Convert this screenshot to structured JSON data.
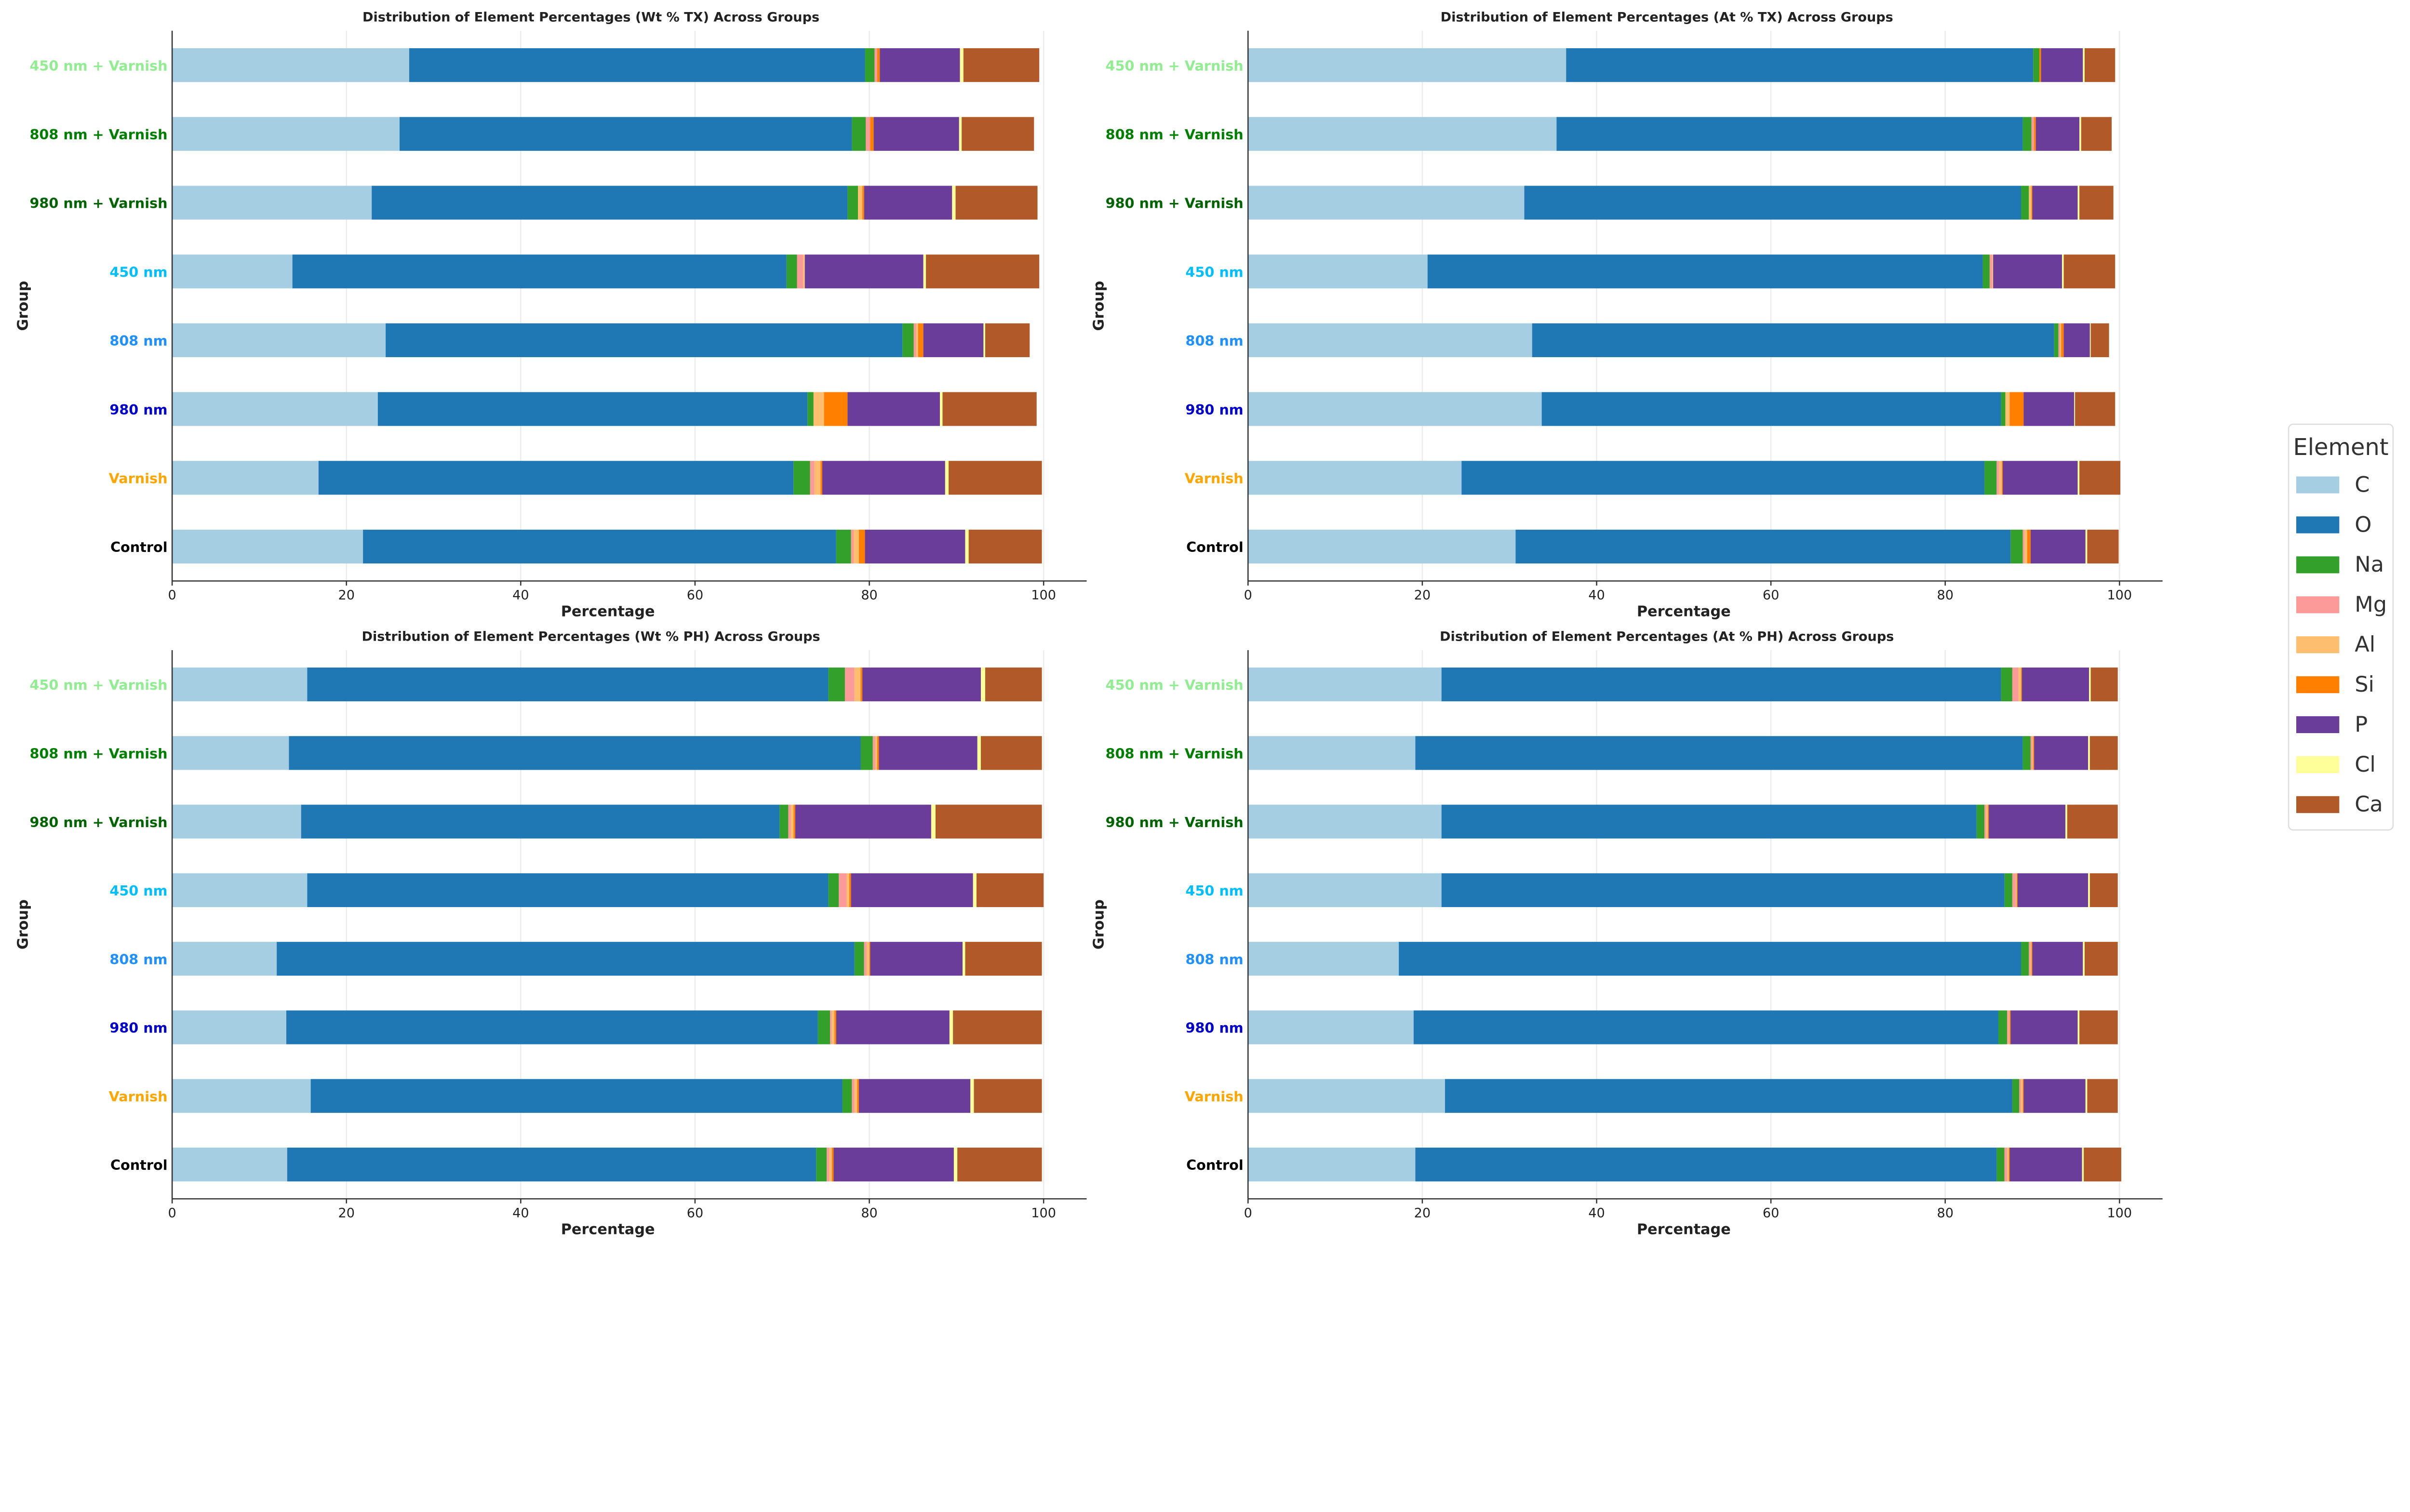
{
  "elements": [
    "C",
    "O",
    "Na",
    "Mg",
    "Al",
    "Si",
    "P",
    "Cl",
    "Ca"
  ],
  "colors": {
    "C": "#a6cee3",
    "O": "#1f78b4",
    "Na": "#33a02c",
    "Mg": "#fb9a99",
    "Al": "#fdbf6f",
    "Si": "#ff7f00",
    "P": "#6a3d9a",
    "Cl": "#ffff99",
    "Ca": "#b15928"
  },
  "legend": {
    "title": "Element",
    "placement": "right"
  },
  "group_label_colors": {
    "450 nm + Varnish": "#90ee90",
    "808 nm + Varnish": "#008000",
    "980 nm + Varnish": "#006400",
    "450 nm": "#00bfff",
    "808 nm": "#1e90ff",
    "980 nm": "#0000cd",
    "Varnish": "#ffa500",
    "Control": "#000000"
  },
  "chart_data": [
    {
      "type": "bar",
      "orientation": "horizontal",
      "stacked": true,
      "title": "Distribution of Element Percentages (Wt % TX) Across Groups",
      "xlabel": "Percentage",
      "ylabel": "Group",
      "xlim": [
        0,
        100
      ],
      "xticks": [
        0,
        20,
        40,
        60,
        80,
        100
      ],
      "categories": [
        "450 nm + Varnish",
        "808 nm + Varnish",
        "980 nm + Varnish",
        "450 nm",
        "808 nm",
        "980 nm",
        "Varnish",
        "Control"
      ],
      "series": [
        {
          "name": "C",
          "values": [
            27.2,
            26.1,
            22.9,
            13.8,
            24.5,
            23.6,
            16.8,
            21.9
          ]
        },
        {
          "name": "O",
          "values": [
            52.3,
            51.9,
            54.6,
            56.7,
            59.3,
            49.3,
            54.5,
            54.3
          ]
        },
        {
          "name": "Na",
          "values": [
            1.1,
            1.6,
            1.2,
            1.2,
            1.3,
            0.7,
            1.9,
            1.7
          ]
        },
        {
          "name": "Mg",
          "values": [
            0.3,
            0.5,
            0,
            0.7,
            0.3,
            0,
            0.5,
            0.3
          ]
        },
        {
          "name": "Al",
          "values": [
            0,
            0,
            0.5,
            0.2,
            0.2,
            1.2,
            0.7,
            0.6
          ]
        },
        {
          "name": "Si",
          "values": [
            0.3,
            0.4,
            0.2,
            0,
            0.6,
            2.7,
            0.2,
            0.7
          ]
        },
        {
          "name": "P",
          "values": [
            9.2,
            9.8,
            10.1,
            13.6,
            6.9,
            10.6,
            14.1,
            11.5
          ]
        },
        {
          "name": "Cl",
          "values": [
            0.4,
            0.3,
            0.4,
            0.3,
            0.2,
            0.3,
            0.4,
            0.4
          ]
        },
        {
          "name": "Ca",
          "values": [
            8.7,
            8.3,
            9.4,
            13.0,
            5.1,
            10.8,
            10.7,
            8.4
          ]
        }
      ]
    },
    {
      "type": "bar",
      "orientation": "horizontal",
      "stacked": true,
      "title": "Distribution of Element Percentages (At % TX) Across Groups",
      "xlabel": "Percentage",
      "ylabel": "Group",
      "xlim": [
        0,
        100
      ],
      "xticks": [
        0,
        20,
        40,
        60,
        80,
        100
      ],
      "categories": [
        "450 nm + Varnish",
        "808 nm + Varnish",
        "980 nm + Varnish",
        "450 nm",
        "808 nm",
        "980 nm",
        "Varnish",
        "Control"
      ],
      "series": [
        {
          "name": "C",
          "values": [
            36.5,
            35.4,
            31.7,
            20.6,
            32.6,
            33.7,
            24.5,
            30.7
          ]
        },
        {
          "name": "O",
          "values": [
            53.6,
            53.5,
            57.0,
            63.7,
            59.9,
            52.7,
            60.0,
            56.8
          ]
        },
        {
          "name": "Na",
          "values": [
            0.7,
            1.0,
            0.9,
            0.8,
            0.5,
            0.5,
            1.4,
            1.4
          ]
        },
        {
          "name": "Mg",
          "values": [
            0,
            0.3,
            0,
            0.3,
            0.2,
            0,
            0.3,
            0.2
          ]
        },
        {
          "name": "Al",
          "values": [
            0,
            0,
            0.3,
            0.1,
            0.1,
            0.5,
            0.3,
            0.3
          ]
        },
        {
          "name": "Si",
          "values": [
            0.2,
            0.2,
            0.1,
            0,
            0.3,
            1.6,
            0.1,
            0.4
          ]
        },
        {
          "name": "P",
          "values": [
            4.8,
            5.0,
            5.2,
            7.9,
            3.0,
            5.8,
            8.6,
            6.3
          ]
        },
        {
          "name": "Cl",
          "values": [
            0.2,
            0.2,
            0.2,
            0.2,
            0.1,
            0.1,
            0.2,
            0.2
          ]
        },
        {
          "name": "Ca",
          "values": [
            3.5,
            3.5,
            3.9,
            5.9,
            2.1,
            4.6,
            4.7,
            3.6
          ]
        }
      ]
    },
    {
      "type": "bar",
      "orientation": "horizontal",
      "stacked": true,
      "title": "Distribution of Element Percentages (Wt % PH) Across Groups",
      "xlabel": "Percentage",
      "ylabel": "Group",
      "xlim": [
        0,
        100
      ],
      "xticks": [
        0,
        20,
        40,
        60,
        80,
        100
      ],
      "categories": [
        "450 nm + Varnish",
        "808 nm + Varnish",
        "980 nm + Varnish",
        "450 nm",
        "808 nm",
        "980 nm",
        "Varnish",
        "Control"
      ],
      "series": [
        {
          "name": "C",
          "values": [
            15.5,
            13.4,
            14.8,
            15.5,
            12.0,
            13.1,
            15.9,
            13.2
          ]
        },
        {
          "name": "O",
          "values": [
            59.8,
            65.6,
            54.9,
            59.8,
            66.3,
            61.0,
            61.0,
            60.7
          ]
        },
        {
          "name": "Na",
          "values": [
            1.9,
            1.4,
            1.0,
            1.2,
            1.1,
            1.4,
            1.1,
            1.2
          ]
        },
        {
          "name": "Mg",
          "values": [
            1.1,
            0.3,
            0.3,
            0.9,
            0.3,
            0.2,
            0.3,
            0.3
          ]
        },
        {
          "name": "Al",
          "values": [
            0.7,
            0.2,
            0.3,
            0.3,
            0.3,
            0.3,
            0.3,
            0.3
          ]
        },
        {
          "name": "Si",
          "values": [
            0.2,
            0.2,
            0.2,
            0.2,
            0.1,
            0.2,
            0.2,
            0.2
          ]
        },
        {
          "name": "P",
          "values": [
            13.6,
            11.3,
            15.6,
            14.0,
            10.6,
            13.0,
            12.8,
            13.8
          ]
        },
        {
          "name": "Cl",
          "values": [
            0.5,
            0.4,
            0.5,
            0.4,
            0.3,
            0.4,
            0.4,
            0.4
          ]
        },
        {
          "name": "Ca",
          "values": [
            6.5,
            7.0,
            12.2,
            7.7,
            8.8,
            10.2,
            7.8,
            9.7
          ]
        }
      ]
    },
    {
      "type": "bar",
      "orientation": "horizontal",
      "stacked": true,
      "title": "Distribution of Element Percentages (At % PH) Across Groups",
      "xlabel": "Percentage",
      "ylabel": "Group",
      "xlim": [
        0,
        100
      ],
      "xticks": [
        0,
        20,
        40,
        60,
        80,
        100
      ],
      "categories": [
        "450 nm + Varnish",
        "808 nm + Varnish",
        "980 nm + Varnish",
        "450 nm",
        "808 nm",
        "980 nm",
        "Varnish",
        "Control"
      ],
      "series": [
        {
          "name": "C",
          "values": [
            22.2,
            19.2,
            22.2,
            22.2,
            17.3,
            19.0,
            22.6,
            19.2
          ]
        },
        {
          "name": "O",
          "values": [
            64.2,
            69.7,
            61.4,
            64.6,
            71.4,
            67.1,
            65.1,
            66.7
          ]
        },
        {
          "name": "Na",
          "values": [
            1.3,
            0.9,
            0.9,
            0.9,
            0.9,
            1.0,
            0.8,
            0.9
          ]
        },
        {
          "name": "Mg",
          "values": [
            0.7,
            0.2,
            0.2,
            0.4,
            0.2,
            0.2,
            0.2,
            0.3
          ]
        },
        {
          "name": "Al",
          "values": [
            0.3,
            0.1,
            0.2,
            0.1,
            0.1,
            0.1,
            0.2,
            0.2
          ]
        },
        {
          "name": "Si",
          "values": [
            0.1,
            0.1,
            0.1,
            0.1,
            0.1,
            0.1,
            0.1,
            0.1
          ]
        },
        {
          "name": "P",
          "values": [
            7.7,
            6.2,
            8.8,
            8.1,
            5.8,
            7.7,
            7.1,
            8.3
          ]
        },
        {
          "name": "Cl",
          "values": [
            0.2,
            0.2,
            0.2,
            0.2,
            0.2,
            0.2,
            0.2,
            0.2
          ]
        },
        {
          "name": "Ca",
          "values": [
            3.1,
            3.2,
            5.8,
            3.2,
            3.8,
            4.4,
            3.5,
            4.3
          ]
        }
      ]
    }
  ]
}
